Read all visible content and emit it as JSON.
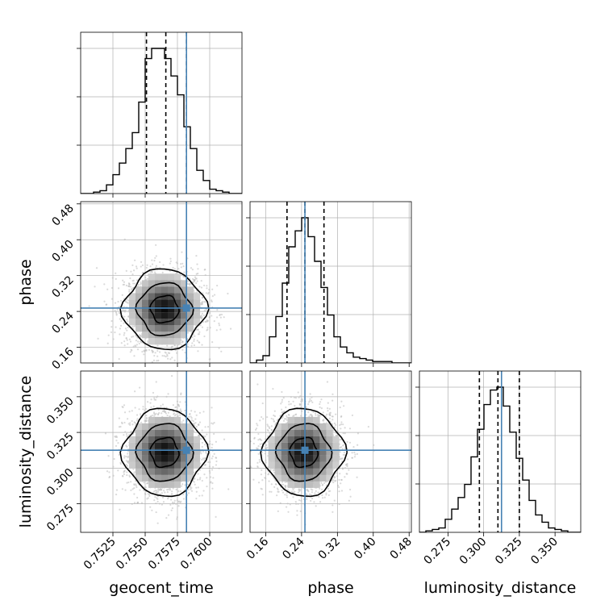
{
  "chart_data": {
    "type": "corner",
    "parameters": [
      "geocent_time",
      "phase",
      "luminosity_distance"
    ],
    "labels": {
      "geocent_time": "geocent_time",
      "phase": "phase",
      "luminosity_distance": "luminosity_distance"
    },
    "ranges": {
      "geocent_time": [
        0.75,
        0.7625
      ],
      "phase": [
        0.125,
        0.485
      ],
      "luminosity_distance": [
        0.255,
        0.368
      ]
    },
    "ticks": {
      "geocent_time": [
        "0.7525",
        "0.7550",
        "0.7575",
        "0.7600"
      ],
      "phase": [
        "0.16",
        "0.24",
        "0.32",
        "0.40",
        "0.48"
      ],
      "luminosity_distance": [
        "0.275",
        "0.300",
        "0.325",
        "0.350"
      ]
    },
    "truths": {
      "geocent_time": 0.7582,
      "phase": 0.2475,
      "luminosity_distance": 0.3125
    },
    "quantiles": {
      "geocent_time": [
        0.7551,
        0.7566,
        0.7582
      ],
      "phase": [
        0.2075,
        0.2475,
        0.29
      ],
      "luminosity_distance": [
        0.297,
        0.31,
        0.325
      ]
    },
    "histograms": {
      "geocent_time": {
        "edges_range": [
          0.75,
          0.7625
        ],
        "counts": [
          0,
          0,
          1,
          2,
          6,
          13,
          21,
          31,
          42,
          63,
          93,
          100,
          100,
          93,
          81,
          68,
          46,
          31,
          16,
          9,
          3,
          2,
          1,
          0,
          0
        ]
      },
      "phase": {
        "edges_range": [
          0.125,
          0.485
        ],
        "counts": [
          0,
          2,
          5,
          18,
          32,
          55,
          80,
          91,
          100,
          87,
          70,
          52,
          33,
          18,
          11,
          7,
          4,
          3,
          2,
          1,
          1,
          1,
          0,
          0,
          0
        ]
      },
      "luminosity_distance": {
        "edges_range": [
          0.255,
          0.368
        ],
        "counts": [
          0,
          1,
          2,
          3,
          9,
          16,
          24,
          33,
          52,
          71,
          88,
          98,
          100,
          87,
          69,
          51,
          36,
          22,
          12,
          7,
          3,
          2,
          1,
          0,
          0
        ]
      }
    },
    "posterior_2d": {
      "phase_vs_geocent_time": {
        "x_mean": 0.7565,
        "y_mean": 0.245,
        "x_sigma": 0.00135,
        "y_sigma": 0.038
      },
      "luminosity_distance_vs_geocent_time": {
        "x_mean": 0.7565,
        "y_mean": 0.311,
        "x_sigma": 0.00135,
        "y_sigma": 0.013
      },
      "luminosity_distance_vs_phase": {
        "x_mean": 0.245,
        "y_mean": 0.311,
        "x_sigma": 0.038,
        "y_sigma": 0.013
      }
    },
    "colors": {
      "truth": "#4682b4",
      "hist": "#000000",
      "points": "#bbbbbb",
      "grid": "#b0b0b0"
    }
  }
}
